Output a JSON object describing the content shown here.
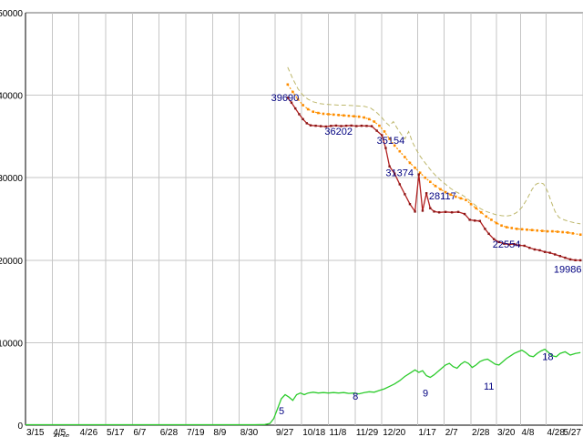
{
  "page": {
    "background": "#ffffff"
  },
  "chart_data": {
    "type": "line",
    "title": "",
    "legend": "none",
    "grid": {
      "show": true,
      "color": "#c6c6c6",
      "axis_color": "#000000",
      "top_line_color": "#6b6b6b"
    },
    "annotation_color": "#000080",
    "x_axis": {
      "tick_labels": [
        "3/15",
        "4/5",
        "4/26",
        "5/17",
        "6/7",
        "6/28",
        "7/19",
        "8/9",
        "8/30",
        "9/27",
        "10/18",
        "11/8",
        "11/29",
        "12/20",
        "1/17",
        "2/7",
        "2/28",
        "3/20",
        "4/8",
        "4/28",
        "5/27"
      ],
      "tick_days": [
        0,
        21,
        42,
        63,
        84,
        105,
        126,
        147,
        168,
        196,
        217,
        238,
        259,
        280,
        308,
        329,
        350,
        370,
        389,
        409,
        438
      ],
      "range_days": [
        0,
        438
      ],
      "partial_second_row_label": "4/26"
    },
    "y_axis": {
      "tick_labels": [
        "0",
        "10000",
        "20000",
        "30000",
        "40000",
        "50000"
      ],
      "tick_values": [
        0,
        10000,
        20000,
        30000,
        40000,
        50000
      ],
      "range": [
        0,
        50000
      ]
    },
    "series": [
      {
        "name": "upper-dashed-line",
        "color": "#bdb76b",
        "dash": "5 3",
        "width": 1,
        "markers": false,
        "points": [
          [
            206,
            43400
          ],
          [
            210,
            42000
          ],
          [
            214,
            40800
          ],
          [
            218,
            40000
          ],
          [
            222,
            39500
          ],
          [
            226,
            39200
          ],
          [
            231,
            39000
          ],
          [
            236,
            38900
          ],
          [
            241,
            38850
          ],
          [
            246,
            38800
          ],
          [
            251,
            38800
          ],
          [
            256,
            38750
          ],
          [
            261,
            38700
          ],
          [
            266,
            38650
          ],
          [
            271,
            38450
          ],
          [
            276,
            37900
          ],
          [
            280,
            37300
          ],
          [
            283,
            36700
          ],
          [
            286,
            36300
          ],
          [
            289,
            36800
          ],
          [
            292,
            36000
          ],
          [
            295,
            35300
          ],
          [
            298,
            34700
          ],
          [
            301,
            35600
          ],
          [
            304,
            34300
          ],
          [
            307,
            33400
          ],
          [
            310,
            32600
          ],
          [
            314,
            31800
          ],
          [
            318,
            31000
          ],
          [
            322,
            30300
          ],
          [
            326,
            29700
          ],
          [
            330,
            29200
          ],
          [
            334,
            28700
          ],
          [
            338,
            28300
          ],
          [
            342,
            28000
          ],
          [
            346,
            27600
          ],
          [
            350,
            27100
          ],
          [
            354,
            26600
          ],
          [
            358,
            26200
          ],
          [
            362,
            25900
          ],
          [
            366,
            25700
          ],
          [
            370,
            25500
          ],
          [
            374,
            25400
          ],
          [
            378,
            25350
          ],
          [
            382,
            25450
          ],
          [
            386,
            25800
          ],
          [
            390,
            26400
          ],
          [
            394,
            27400
          ],
          [
            398,
            28600
          ],
          [
            401,
            29200
          ],
          [
            404,
            29400
          ],
          [
            407,
            29250
          ],
          [
            410,
            28400
          ],
          [
            413,
            27100
          ],
          [
            416,
            25900
          ],
          [
            419,
            25200
          ],
          [
            423,
            24900
          ],
          [
            427,
            24700
          ],
          [
            431,
            24550
          ],
          [
            436,
            24400
          ]
        ]
      },
      {
        "name": "middle-dashed-line",
        "color": "#ff9900",
        "dash": "2 2",
        "width": 1.2,
        "markers": true,
        "marker_color": "#ff8c00",
        "marker_size": 2.6,
        "points": [
          [
            206,
            41300
          ],
          [
            210,
            40400
          ],
          [
            214,
            39500
          ],
          [
            218,
            38800
          ],
          [
            222,
            38300
          ],
          [
            226,
            38000
          ],
          [
            230,
            37850
          ],
          [
            234,
            37750
          ],
          [
            238,
            37700
          ],
          [
            242,
            37650
          ],
          [
            246,
            37600
          ],
          [
            250,
            37550
          ],
          [
            254,
            37500
          ],
          [
            258,
            37450
          ],
          [
            262,
            37400
          ],
          [
            266,
            37300
          ],
          [
            270,
            37100
          ],
          [
            274,
            36800
          ],
          [
            278,
            36300
          ],
          [
            282,
            35600
          ],
          [
            286,
            34700
          ],
          [
            290,
            33900
          ],
          [
            294,
            33200
          ],
          [
            298,
            32500
          ],
          [
            302,
            31800
          ],
          [
            306,
            31200
          ],
          [
            310,
            30600
          ],
          [
            314,
            30000
          ],
          [
            318,
            29500
          ],
          [
            322,
            29000
          ],
          [
            326,
            28600
          ],
          [
            330,
            28250
          ],
          [
            334,
            27950
          ],
          [
            338,
            27700
          ],
          [
            342,
            27500
          ],
          [
            346,
            27300
          ],
          [
            350,
            26800
          ],
          [
            354,
            26300
          ],
          [
            358,
            25800
          ],
          [
            362,
            25300
          ],
          [
            366,
            24900
          ],
          [
            370,
            24500
          ],
          [
            374,
            24200
          ],
          [
            378,
            24000
          ],
          [
            382,
            23900
          ],
          [
            386,
            23800
          ],
          [
            390,
            23750
          ],
          [
            394,
            23700
          ],
          [
            398,
            23650
          ],
          [
            402,
            23600
          ],
          [
            406,
            23550
          ],
          [
            410,
            23500
          ],
          [
            414,
            23500
          ],
          [
            418,
            23450
          ],
          [
            422,
            23400
          ],
          [
            426,
            23350
          ],
          [
            430,
            23250
          ],
          [
            436,
            23100
          ]
        ]
      },
      {
        "name": "lowest-price-line",
        "color": "#b22222",
        "dash": "",
        "width": 1.3,
        "markers": true,
        "marker_color": "#8b1515",
        "marker_size": 2.4,
        "points": [
          [
            206,
            39690
          ],
          [
            209,
            39100
          ],
          [
            212,
            38400
          ],
          [
            215,
            37700
          ],
          [
            218,
            37100
          ],
          [
            221,
            36600
          ],
          [
            224,
            36350
          ],
          [
            228,
            36300
          ],
          [
            232,
            36250
          ],
          [
            236,
            36202
          ],
          [
            240,
            36280
          ],
          [
            244,
            36320
          ],
          [
            248,
            36260
          ],
          [
            252,
            36300
          ],
          [
            256,
            36320
          ],
          [
            260,
            36260
          ],
          [
            264,
            36300
          ],
          [
            268,
            36280
          ],
          [
            272,
            36250
          ],
          [
            276,
            35700
          ],
          [
            280,
            35154
          ],
          [
            283,
            33600
          ],
          [
            286,
            31374
          ],
          [
            290,
            30500
          ],
          [
            294,
            29200
          ],
          [
            298,
            28000
          ],
          [
            302,
            26800
          ],
          [
            306,
            25900
          ],
          [
            309,
            30400
          ],
          [
            312,
            26000
          ],
          [
            315,
            28117
          ],
          [
            318,
            26300
          ],
          [
            321,
            25900
          ],
          [
            325,
            25800
          ],
          [
            330,
            25850
          ],
          [
            335,
            25800
          ],
          [
            340,
            25850
          ],
          [
            345,
            25600
          ],
          [
            349,
            24900
          ],
          [
            353,
            24800
          ],
          [
            357,
            24750
          ],
          [
            361,
            23800
          ],
          [
            364,
            23200
          ],
          [
            368,
            22554
          ],
          [
            372,
            22200
          ],
          [
            376,
            22000
          ],
          [
            380,
            21900
          ],
          [
            384,
            21950
          ],
          [
            388,
            21800
          ],
          [
            392,
            21750
          ],
          [
            396,
            21500
          ],
          [
            400,
            21300
          ],
          [
            404,
            21200
          ],
          [
            408,
            21000
          ],
          [
            412,
            20900
          ],
          [
            416,
            20700
          ],
          [
            420,
            20500
          ],
          [
            424,
            20300
          ],
          [
            428,
            20100
          ],
          [
            432,
            20000
          ],
          [
            436,
            19986
          ]
        ]
      },
      {
        "name": "count-line",
        "color": "#2ecc2e",
        "dash": "",
        "width": 1.3,
        "markers": false,
        "points": [
          [
            0,
            60
          ],
          [
            20,
            60
          ],
          [
            40,
            60
          ],
          [
            60,
            60
          ],
          [
            80,
            60
          ],
          [
            100,
            60
          ],
          [
            120,
            60
          ],
          [
            140,
            60
          ],
          [
            160,
            60
          ],
          [
            180,
            60
          ],
          [
            188,
            80
          ],
          [
            192,
            200
          ],
          [
            195,
            800
          ],
          [
            198,
            2000
          ],
          [
            201,
            3200
          ],
          [
            204,
            3700
          ],
          [
            207,
            3400
          ],
          [
            210,
            3000
          ],
          [
            213,
            3700
          ],
          [
            216,
            3900
          ],
          [
            219,
            3700
          ],
          [
            222,
            3900
          ],
          [
            226,
            4000
          ],
          [
            230,
            3900
          ],
          [
            234,
            3950
          ],
          [
            238,
            3900
          ],
          [
            242,
            3950
          ],
          [
            246,
            3900
          ],
          [
            250,
            3950
          ],
          [
            254,
            3850
          ],
          [
            258,
            3900
          ],
          [
            262,
            3800
          ],
          [
            266,
            3950
          ],
          [
            270,
            4050
          ],
          [
            274,
            4000
          ],
          [
            278,
            4200
          ],
          [
            282,
            4400
          ],
          [
            286,
            4700
          ],
          [
            290,
            5000
          ],
          [
            294,
            5400
          ],
          [
            298,
            5900
          ],
          [
            302,
            6300
          ],
          [
            306,
            6700
          ],
          [
            309,
            6400
          ],
          [
            312,
            6600
          ],
          [
            315,
            6000
          ],
          [
            318,
            5800
          ],
          [
            321,
            6100
          ],
          [
            324,
            6500
          ],
          [
            327,
            6900
          ],
          [
            330,
            7300
          ],
          [
            333,
            7500
          ],
          [
            336,
            7100
          ],
          [
            339,
            6900
          ],
          [
            342,
            7400
          ],
          [
            345,
            7700
          ],
          [
            348,
            7500
          ],
          [
            351,
            7000
          ],
          [
            354,
            7300
          ],
          [
            357,
            7700
          ],
          [
            360,
            7900
          ],
          [
            363,
            8000
          ],
          [
            366,
            7700
          ],
          [
            369,
            7400
          ],
          [
            372,
            7300
          ],
          [
            375,
            7700
          ],
          [
            378,
            8100
          ],
          [
            381,
            8400
          ],
          [
            384,
            8700
          ],
          [
            387,
            8900
          ],
          [
            390,
            9100
          ],
          [
            393,
            8800
          ],
          [
            396,
            8400
          ],
          [
            399,
            8300
          ],
          [
            402,
            8700
          ],
          [
            405,
            9000
          ],
          [
            408,
            9200
          ],
          [
            411,
            8800
          ],
          [
            414,
            8400
          ],
          [
            417,
            8300
          ],
          [
            420,
            8700
          ],
          [
            424,
            8900
          ],
          [
            428,
            8500
          ],
          [
            432,
            8700
          ],
          [
            436,
            8800
          ]
        ]
      }
    ],
    "annotations": [
      {
        "text": "39690",
        "day": 193,
        "value": 39300
      },
      {
        "text": "36202",
        "day": 235,
        "value": 35200
      },
      {
        "text": "35154",
        "day": 276,
        "value": 34100
      },
      {
        "text": "31374",
        "day": 283,
        "value": 30200
      },
      {
        "text": "28117",
        "day": 317,
        "value": 27400
      },
      {
        "text": "22554",
        "day": 367,
        "value": 21500
      },
      {
        "text": "19986",
        "day": 415,
        "value": 18500
      },
      {
        "text": "5",
        "day": 199,
        "value": 1300
      },
      {
        "text": "8",
        "day": 257,
        "value": 3100
      },
      {
        "text": "9",
        "day": 312,
        "value": 3500
      },
      {
        "text": "11",
        "day": 360,
        "value": 4300
      },
      {
        "text": "18",
        "day": 406,
        "value": 7900
      }
    ]
  }
}
